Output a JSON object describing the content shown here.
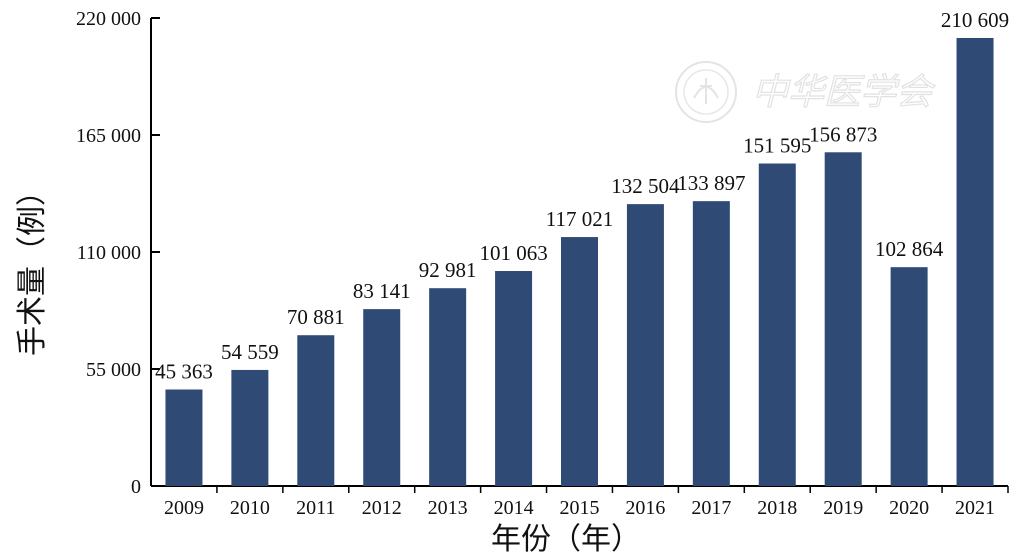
{
  "chart_data": {
    "type": "bar",
    "categories": [
      "2009",
      "2010",
      "2011",
      "2012",
      "2013",
      "2014",
      "2015",
      "2016",
      "2017",
      "2018",
      "2019",
      "2020",
      "2021"
    ],
    "values": [
      45363,
      54559,
      70881,
      83141,
      92981,
      101063,
      117021,
      132504,
      133897,
      151595,
      156873,
      102864,
      210609
    ],
    "value_labels": [
      "45 363",
      "54 559",
      "70 881",
      "83 141",
      "92 981",
      "101 063",
      "117 021",
      "132 504",
      "133 897",
      "151 595",
      "156 873",
      "102 864",
      "210 609"
    ],
    "xlabel": "年份（年）",
    "ylabel": "手术量（例）",
    "ylim": [
      0,
      220000
    ],
    "yticks": [
      0,
      55000,
      110000,
      165000,
      220000
    ],
    "ytick_labels": [
      "0",
      "55 000",
      "110 000",
      "165 000",
      "220 000"
    ],
    "bar_color": "#2f4a74",
    "grid": false
  },
  "watermark": {
    "text": "中华医学会",
    "icon": "society-seal-icon"
  }
}
